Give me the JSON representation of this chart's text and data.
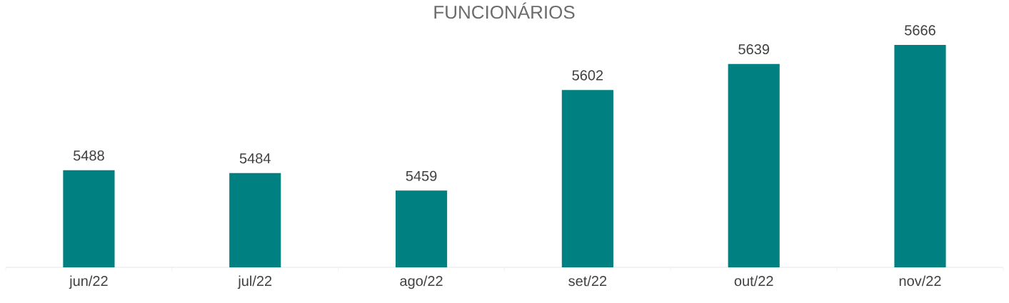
{
  "chart_data": {
    "type": "bar",
    "title": "FUNCIONÁRIOS",
    "categories": [
      "jun/22",
      "jul/22",
      "ago/22",
      "set/22",
      "out/22",
      "nov/22"
    ],
    "values": [
      5488,
      5484,
      5459,
      5602,
      5639,
      5666
    ],
    "color": "#008080",
    "ylim": [
      5350,
      5666
    ],
    "data_labels": true
  }
}
